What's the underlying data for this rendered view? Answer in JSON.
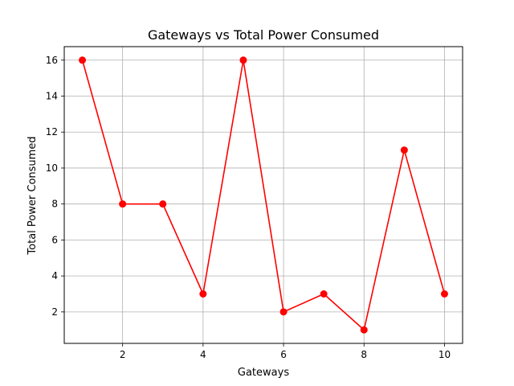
{
  "chart_data": {
    "type": "line",
    "title": "Gateways vs Total Power Consumed",
    "xlabel": "Gateways",
    "ylabel": "Total Power Consumed",
    "xlim": [
      0.55,
      10.45
    ],
    "ylim": [
      0.25,
      16.75
    ],
    "x_ticks": [
      2,
      4,
      6,
      8,
      10
    ],
    "y_ticks": [
      2,
      4,
      6,
      8,
      10,
      12,
      14,
      16
    ],
    "x_tick_labels": [
      "2",
      "4",
      "6",
      "8",
      "10"
    ],
    "y_tick_labels": [
      "2",
      "4",
      "6",
      "8",
      "10",
      "12",
      "14",
      "16"
    ],
    "grid": true,
    "legend": "none",
    "series": [
      {
        "color": "#ff0000",
        "marker": "circle",
        "x": [
          1,
          2,
          3,
          4,
          5,
          6,
          7,
          8,
          9,
          10
        ],
        "y": [
          16,
          8,
          8,
          3,
          16,
          2,
          3,
          1,
          11,
          3
        ]
      }
    ]
  },
  "colors": {
    "series_line": "#ff0000",
    "grid": "#b0b0b0",
    "axes": "#000000",
    "background": "#ffffff"
  }
}
